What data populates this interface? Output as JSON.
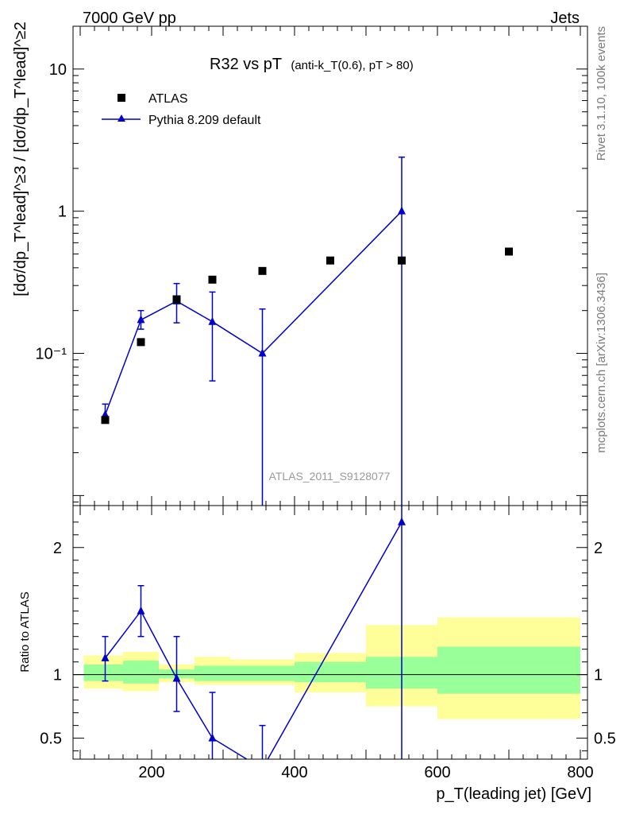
{
  "header": {
    "left": "7000 GeV pp",
    "right": "Jets"
  },
  "side_labels": {
    "rivet": "Rivet 3.1.10,  100k events",
    "mcplots": "mcplots.cern.ch [arXiv:1306.3436]"
  },
  "analysis_id": "ATLAS_2011_S9128077",
  "colors": {
    "mc": "#0000cc",
    "data": "#000000",
    "band_inner": "#99ff99",
    "band_outer": "#ffff99"
  },
  "chart_data": [
    {
      "type": "scatter",
      "panel": "main",
      "title": "R32 vs pT",
      "subtitle": "(anti-k_T(0.6), pT > 80)",
      "ylabel": "[dσ/dp_T^lead]^≥3 / [dσ/dp_T^lead]^≥2",
      "xlim": [
        90,
        810
      ],
      "ylim": [
        0.0085,
        20
      ],
      "yscale": "log",
      "yticks": [
        {
          "v": 0.1,
          "label": "10⁻¹"
        },
        {
          "v": 1,
          "label": "1"
        },
        {
          "v": 10,
          "label": "10"
        }
      ],
      "legend": {
        "position": "top-left"
      },
      "series": [
        {
          "name": "ATLAS",
          "style": "square-markers",
          "x": [
            135,
            185,
            235,
            285,
            355,
            450,
            550,
            700
          ],
          "y": [
            0.034,
            0.12,
            0.24,
            0.33,
            0.38,
            0.45,
            0.45,
            0.52
          ]
        },
        {
          "name": "Pythia 8.209 default",
          "style": "line-triangles",
          "x": [
            135,
            185,
            235,
            285,
            355,
            550
          ],
          "y": [
            0.037,
            0.172,
            0.233,
            0.167,
            0.1,
            1.0
          ],
          "err_low": [
            0.034,
            0.148,
            0.164,
            0.064,
            0.005,
            0.005
          ],
          "err_high": [
            0.044,
            0.2,
            0.31,
            0.27,
            0.205,
            2.4
          ]
        }
      ]
    },
    {
      "type": "line",
      "panel": "ratio",
      "xlabel": "p_T(leading jet) [GeV]",
      "ylabel": "Ratio to ATLAS",
      "xlim": [
        90,
        810
      ],
      "ylim": [
        0.335,
        2.33
      ],
      "xticks": [
        200,
        400,
        600,
        800
      ],
      "yticks": [
        0.5,
        1,
        2
      ],
      "bands": [
        {
          "x0": 105,
          "x1": 160,
          "inner": [
            0.95,
            1.08
          ],
          "outer": [
            0.89,
            1.15
          ]
        },
        {
          "x0": 160,
          "x1": 210,
          "inner": [
            0.93,
            1.11
          ],
          "outer": [
            0.87,
            1.18
          ]
        },
        {
          "x0": 210,
          "x1": 260,
          "inner": [
            0.97,
            1.04
          ],
          "outer": [
            0.94,
            1.08
          ]
        },
        {
          "x0": 260,
          "x1": 310,
          "inner": [
            0.95,
            1.07
          ],
          "outer": [
            0.92,
            1.14
          ]
        },
        {
          "x0": 310,
          "x1": 400,
          "inner": [
            0.95,
            1.07
          ],
          "outer": [
            0.92,
            1.12
          ]
        },
        {
          "x0": 400,
          "x1": 500,
          "inner": [
            0.94,
            1.1
          ],
          "outer": [
            0.86,
            1.17
          ]
        },
        {
          "x0": 500,
          "x1": 600,
          "inner": [
            0.89,
            1.14
          ],
          "outer": [
            0.75,
            1.39
          ]
        },
        {
          "x0": 600,
          "x1": 800,
          "inner": [
            0.85,
            1.22
          ],
          "outer": [
            0.65,
            1.45
          ]
        }
      ],
      "series": [
        {
          "name": "Pythia 8.209 default",
          "x": [
            135,
            185,
            235,
            285,
            355,
            550
          ],
          "y": [
            1.13,
            1.5,
            0.97,
            0.5,
            0.26,
            2.2
          ],
          "err_low": [
            0.95,
            1.3,
            0.71,
            0.2,
            0.01,
            0.01
          ],
          "err_high": [
            1.3,
            1.7,
            1.3,
            0.86,
            0.6,
            5.0
          ]
        }
      ]
    }
  ]
}
